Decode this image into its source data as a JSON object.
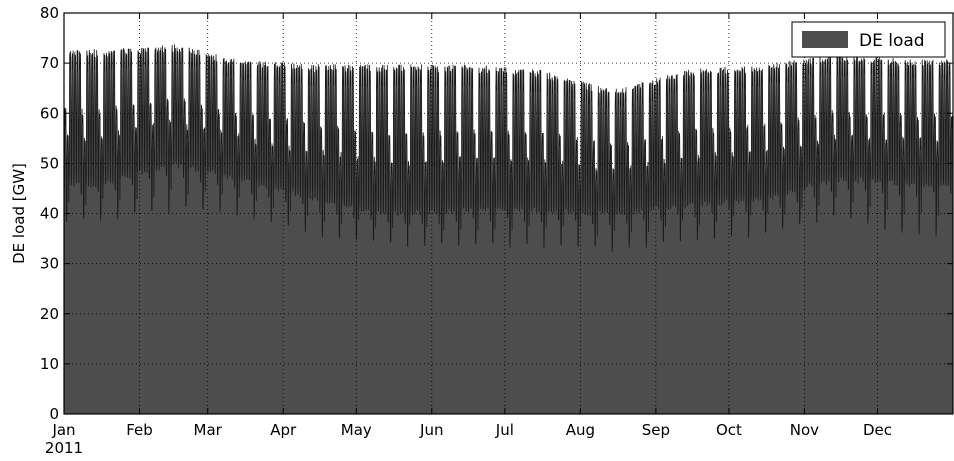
{
  "chart_data": {
    "type": "area",
    "ylabel": "DE load [GW]",
    "xlabel": "",
    "ylim": [
      0,
      80
    ],
    "yticks": [
      0,
      10,
      20,
      30,
      40,
      50,
      60,
      70,
      80
    ],
    "xlim": [
      "2011-01-01",
      "2011-12-31"
    ],
    "xticks": [
      {
        "date": "2011-01-01",
        "label": "Jan",
        "sublabel": "2011"
      },
      {
        "date": "2011-02-01",
        "label": "Feb"
      },
      {
        "date": "2011-03-01",
        "label": "Mar"
      },
      {
        "date": "2011-04-01",
        "label": "Apr"
      },
      {
        "date": "2011-05-01",
        "label": "May"
      },
      {
        "date": "2011-06-01",
        "label": "Jun"
      },
      {
        "date": "2011-07-01",
        "label": "Jul"
      },
      {
        "date": "2011-08-01",
        "label": "Aug"
      },
      {
        "date": "2011-09-01",
        "label": "Sep"
      },
      {
        "date": "2011-10-01",
        "label": "Oct"
      },
      {
        "date": "2011-11-01",
        "label": "Nov"
      },
      {
        "date": "2011-12-01",
        "label": "Dec"
      }
    ],
    "grid": true,
    "legend_position": "top-right",
    "series": [
      {
        "name": "DE load",
        "color": "#4d4d4d",
        "frequency": "hourly",
        "monthly_envelope": [
          {
            "month": "2011-01-15",
            "weekday_peak": 72,
            "weekday_trough": 46,
            "weekend_trough": 39
          },
          {
            "month": "2011-02-15",
            "weekday_peak": 73,
            "weekday_trough": 50,
            "weekend_trough": 41
          },
          {
            "month": "2011-03-15",
            "weekday_peak": 70,
            "weekday_trough": 47,
            "weekend_trough": 40
          },
          {
            "month": "2011-04-15",
            "weekday_peak": 69,
            "weekday_trough": 43,
            "weekend_trough": 36
          },
          {
            "month": "2011-05-15",
            "weekday_peak": 69,
            "weekday_trough": 40,
            "weekend_trough": 34
          },
          {
            "month": "2011-06-15",
            "weekday_peak": 69,
            "weekday_trough": 41,
            "weekend_trough": 34
          },
          {
            "month": "2011-07-15",
            "weekday_peak": 68,
            "weekday_trough": 41,
            "weekend_trough": 34
          },
          {
            "month": "2011-08-15",
            "weekday_peak": 64,
            "weekday_trough": 40,
            "weekend_trough": 33
          },
          {
            "month": "2011-09-15",
            "weekday_peak": 68,
            "weekday_trough": 42,
            "weekend_trough": 35
          },
          {
            "month": "2011-10-15",
            "weekday_peak": 69,
            "weekday_trough": 43,
            "weekend_trough": 36
          },
          {
            "month": "2011-11-15",
            "weekday_peak": 71,
            "weekday_trough": 47,
            "weekend_trough": 40
          },
          {
            "month": "2011-12-15",
            "weekday_peak": 70,
            "weekday_trough": 46,
            "weekend_trough": 36
          }
        ]
      }
    ]
  }
}
